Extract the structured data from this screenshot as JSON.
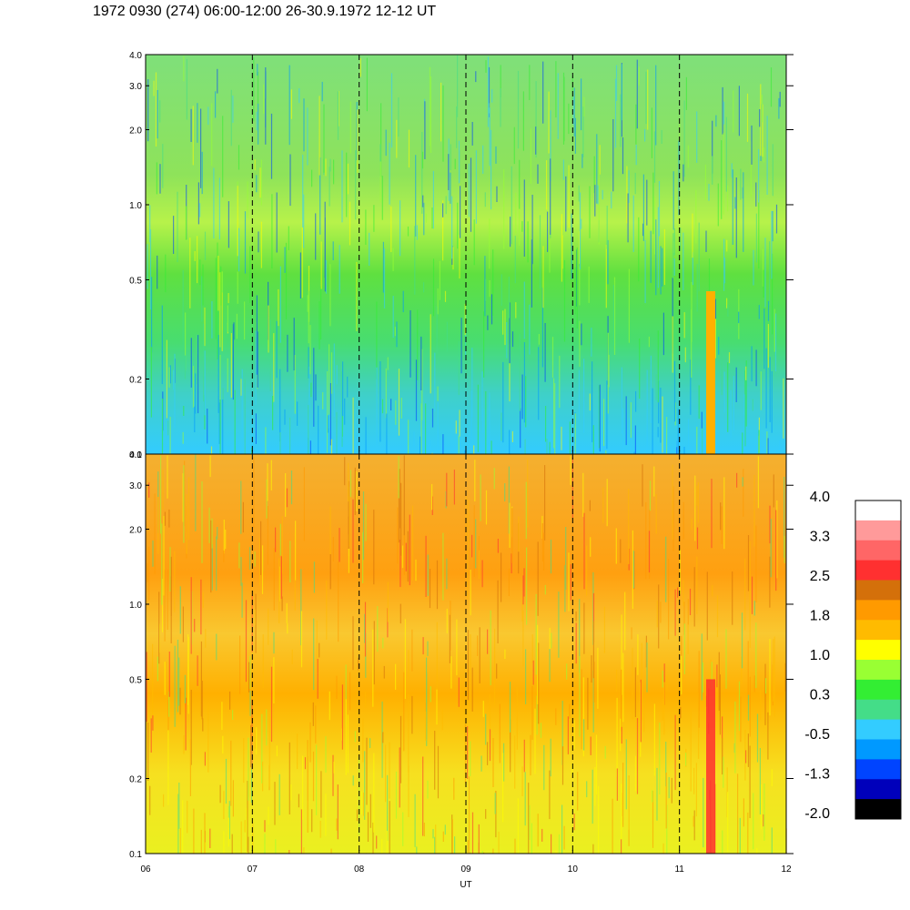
{
  "title": "1972 0930 (274) 06:00-12:00 26-30.9.1972  12-12 UT",
  "chart_data": [
    {
      "type": "heatmap",
      "panel": "top",
      "x": [
        "06",
        "07",
        "08",
        "09",
        "10",
        "11",
        "12"
      ],
      "xlim": [
        6,
        12
      ],
      "y_ticks": [
        "0.1",
        "0.2",
        "0.5",
        "1.0",
        "2.0",
        "3.0",
        "4.0"
      ],
      "ylim": [
        0.1,
        4.0
      ],
      "yscale": "log",
      "vertical_markers": [
        7,
        8,
        9,
        10,
        11
      ],
      "dominant_levels": "-0.5 to 1.0",
      "feature": "orange band near 11.3 UT below 0.5"
    },
    {
      "type": "heatmap",
      "panel": "bottom",
      "x": [
        "06",
        "07",
        "08",
        "09",
        "10",
        "11",
        "12"
      ],
      "xlim": [
        6,
        12
      ],
      "xlabel": "UT",
      "y_ticks": [
        "0.1",
        "0.2",
        "0.5",
        "1.0",
        "2.0",
        "3.0",
        "4.0"
      ],
      "ylim": [
        0.1,
        4.0
      ],
      "yscale": "log",
      "vertical_markers": [
        7,
        8,
        9,
        10,
        11
      ],
      "dominant_levels": "1.0 to 1.8",
      "feature": "red band near 11.3 UT below 0.5"
    }
  ],
  "colorbar": {
    "labels": [
      "4.0",
      "3.3",
      "2.5",
      "1.8",
      "1.0",
      "0.3",
      "-0.5",
      "-1.3",
      "-2.0"
    ],
    "colors": [
      "#ffffff",
      "#ff9a9a",
      "#ff6666",
      "#ff3030",
      "#d4700a",
      "#ff9a00",
      "#ffbb00",
      "#ffff00",
      "#99ff33",
      "#33ee33",
      "#44dd88",
      "#33ccff",
      "#0099ff",
      "#0044ff",
      "#0000bb",
      "#000000"
    ]
  }
}
